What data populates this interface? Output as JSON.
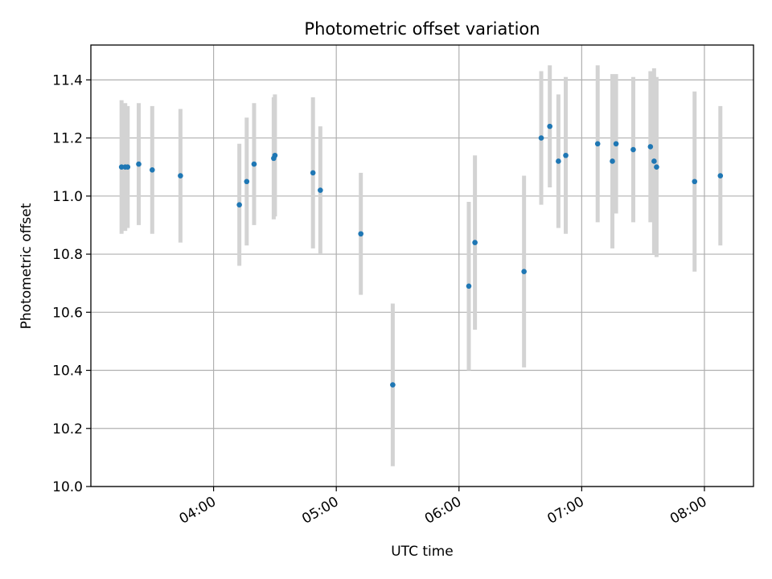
{
  "chart_data": {
    "type": "scatter",
    "title": "Photometric offset variation",
    "xlabel": "UTC time",
    "ylabel": "Photometric offset",
    "x_unit": "hours UTC",
    "xlim": [
      3.0,
      8.4
    ],
    "ylim": [
      10.0,
      11.52
    ],
    "x_ticks": [
      {
        "value": 4,
        "label": "04:00"
      },
      {
        "value": 5,
        "label": "05:00"
      },
      {
        "value": 6,
        "label": "06:00"
      },
      {
        "value": 7,
        "label": "07:00"
      },
      {
        "value": 8,
        "label": "08:00"
      }
    ],
    "y_ticks": [
      {
        "value": 10.0,
        "label": "10.0"
      },
      {
        "value": 10.2,
        "label": "10.2"
      },
      {
        "value": 10.4,
        "label": "10.4"
      },
      {
        "value": 10.6,
        "label": "10.6"
      },
      {
        "value": 10.8,
        "label": "10.8"
      },
      {
        "value": 11.0,
        "label": "11.0"
      },
      {
        "value": 11.2,
        "label": "11.2"
      },
      {
        "value": 11.4,
        "label": "11.4"
      }
    ],
    "grid": true,
    "colors": {
      "point": "#1f77b4",
      "error_bar": "#d3d3d3"
    },
    "points": [
      {
        "x": 3.25,
        "y": 11.1,
        "err": 0.23
      },
      {
        "x": 3.28,
        "y": 11.1,
        "err": 0.22
      },
      {
        "x": 3.3,
        "y": 11.1,
        "err": 0.21
      },
      {
        "x": 3.39,
        "y": 11.11,
        "err": 0.21
      },
      {
        "x": 3.5,
        "y": 11.09,
        "err": 0.22
      },
      {
        "x": 3.73,
        "y": 11.07,
        "err": 0.23
      },
      {
        "x": 4.21,
        "y": 10.97,
        "err": 0.21
      },
      {
        "x": 4.27,
        "y": 11.05,
        "err": 0.22
      },
      {
        "x": 4.33,
        "y": 11.11,
        "err": 0.21
      },
      {
        "x": 4.49,
        "y": 11.13,
        "err": 0.21
      },
      {
        "x": 4.5,
        "y": 11.14,
        "err": 0.21
      },
      {
        "x": 4.81,
        "y": 11.08,
        "err": 0.26
      },
      {
        "x": 4.87,
        "y": 11.02,
        "err": 0.22
      },
      {
        "x": 5.2,
        "y": 10.87,
        "err": 0.21
      },
      {
        "x": 5.46,
        "y": 10.35,
        "err": 0.28
      },
      {
        "x": 6.08,
        "y": 10.69,
        "err": 0.29
      },
      {
        "x": 6.13,
        "y": 10.84,
        "err": 0.3
      },
      {
        "x": 6.53,
        "y": 10.74,
        "err": 0.33
      },
      {
        "x": 6.67,
        "y": 11.2,
        "err": 0.23
      },
      {
        "x": 6.74,
        "y": 11.24,
        "err": 0.21
      },
      {
        "x": 6.81,
        "y": 11.12,
        "err": 0.23
      },
      {
        "x": 6.87,
        "y": 11.14,
        "err": 0.27
      },
      {
        "x": 7.13,
        "y": 11.18,
        "err": 0.27
      },
      {
        "x": 7.25,
        "y": 11.12,
        "err": 0.3
      },
      {
        "x": 7.28,
        "y": 11.18,
        "err": 0.24
      },
      {
        "x": 7.42,
        "y": 11.16,
        "err": 0.25
      },
      {
        "x": 7.56,
        "y": 11.17,
        "err": 0.26
      },
      {
        "x": 7.59,
        "y": 11.12,
        "err": 0.32
      },
      {
        "x": 7.61,
        "y": 11.1,
        "err": 0.31
      },
      {
        "x": 7.92,
        "y": 11.05,
        "err": 0.31
      },
      {
        "x": 8.13,
        "y": 11.07,
        "err": 0.24
      }
    ]
  }
}
